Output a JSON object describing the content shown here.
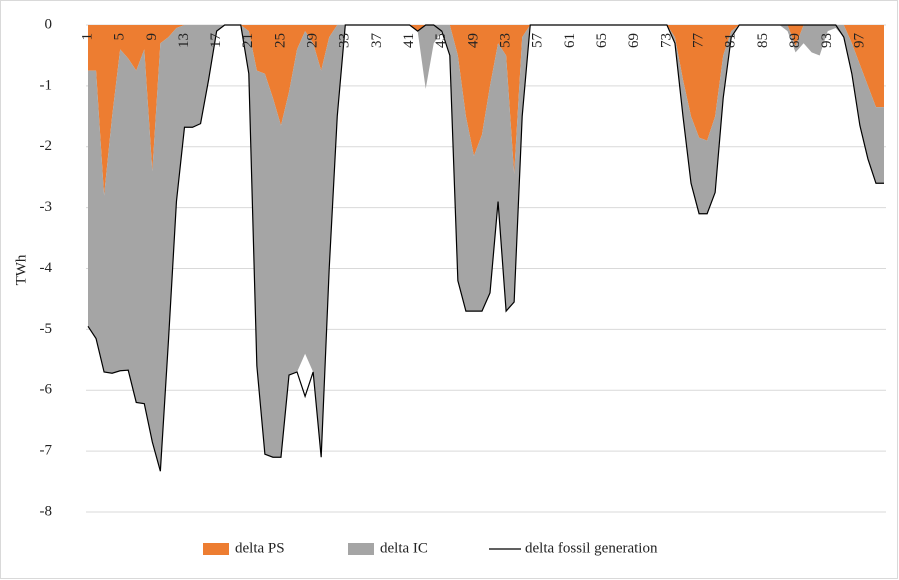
{
  "chart_data": {
    "type": "area",
    "y_label": "TWh",
    "categories": [
      "1",
      null,
      null,
      null,
      "5",
      null,
      null,
      null,
      "9",
      null,
      null,
      null,
      "13",
      null,
      null,
      null,
      "17",
      null,
      null,
      null,
      "21",
      null,
      null,
      null,
      "25",
      null,
      null,
      null,
      "29",
      null,
      null,
      null,
      "33",
      null,
      null,
      null,
      "37",
      null,
      null,
      null,
      "41",
      null,
      null,
      null,
      "45",
      null,
      null,
      null,
      "49",
      null,
      null,
      null,
      "53",
      null,
      null,
      null,
      "57",
      null,
      null,
      null,
      "61",
      null,
      null,
      null,
      "65",
      null,
      null,
      null,
      "69",
      null,
      null,
      null,
      "73",
      null,
      null,
      null,
      "77",
      null,
      null,
      null,
      "81",
      null,
      null,
      null,
      "85",
      null,
      null,
      null,
      "89",
      null,
      null,
      null,
      "93",
      null,
      null,
      null,
      "97",
      null,
      null,
      null
    ],
    "ylim": [
      -8,
      0
    ],
    "yticks": [
      0,
      -1,
      -2,
      -3,
      -4,
      -5,
      -6,
      -7,
      -8
    ],
    "grid": true,
    "legend": "bottom",
    "series": [
      {
        "name": "delta PS",
        "type": "area",
        "color": "#ED7D31",
        "values": [
          -0.75,
          -0.75,
          -2.8,
          -1.5,
          -0.4,
          -0.55,
          -0.75,
          -0.4,
          -2.4,
          -0.3,
          -0.2,
          -0.05,
          0,
          0,
          0,
          0,
          0,
          0,
          0,
          0,
          -0.1,
          -0.75,
          -0.8,
          -1.2,
          -1.65,
          -1.1,
          -0.4,
          -0.1,
          -0.3,
          -0.75,
          -0.2,
          0,
          0,
          0,
          0,
          0,
          0,
          0,
          0,
          0,
          0,
          -0.1,
          0,
          0,
          0,
          0,
          -0.5,
          -1.5,
          -2.15,
          -1.8,
          -1.0,
          -0.3,
          -0.5,
          -2.45,
          -0.2,
          0,
          0,
          0,
          0,
          0,
          0,
          0,
          0,
          0,
          0,
          0,
          0,
          0,
          0,
          0,
          0,
          0,
          0,
          -0.2,
          -0.9,
          -1.5,
          -1.85,
          -1.9,
          -1.5,
          -0.5,
          -0.1,
          0,
          0,
          0,
          0,
          0,
          0,
          0,
          -0.35,
          0,
          0,
          0,
          0,
          0,
          0,
          -0.3,
          -0.65,
          -1.0,
          -1.35,
          -1.35
        ]
      },
      {
        "name": "delta IC",
        "type": "area",
        "color": "#A5A5A5",
        "values": [
          -4.2,
          -4.4,
          -2.9,
          -4.22,
          -5.28,
          -5.12,
          -5.45,
          -5.82,
          -4.45,
          -7.03,
          -5.0,
          -2.85,
          -1.68,
          -1.68,
          -1.62,
          -0.9,
          -0.1,
          0,
          0,
          0,
          -0.7,
          -4.85,
          -6.25,
          -5.9,
          -5.45,
          -4.65,
          -5.3,
          -5.3,
          -5.4,
          -6.35,
          -3.8,
          -1.5,
          0,
          0,
          0,
          0,
          0,
          0,
          0,
          0,
          0,
          0,
          -1.05,
          -0.3,
          -0.1,
          -0.5,
          -3.7,
          -3.2,
          -2.55,
          -2.9,
          -3.4,
          -2.6,
          -4.2,
          -2.1,
          -1.3,
          0,
          0,
          0,
          0,
          0,
          0,
          0,
          0,
          0,
          0,
          0,
          0,
          0,
          0,
          0,
          0,
          0,
          0,
          -0.1,
          -0.6,
          -1.1,
          -1.25,
          -1.2,
          -1.25,
          -0.7,
          -0.1,
          0,
          0,
          0,
          0,
          0,
          0,
          -0.1,
          -0.1,
          -0.3,
          -0.45,
          -0.5,
          -0.1,
          -0.05,
          -0.2,
          -0.5,
          -1.0,
          -1.2,
          -1.25,
          -1.25
        ]
      },
      {
        "name": "delta fossil generation",
        "type": "line",
        "color": "#000000",
        "values": [
          -4.95,
          -5.15,
          -5.7,
          -5.72,
          -5.68,
          -5.67,
          -6.2,
          -6.22,
          -6.85,
          -7.33,
          -5.2,
          -2.9,
          -1.68,
          -1.68,
          -1.62,
          -0.9,
          -0.1,
          0,
          0,
          0,
          -0.8,
          -5.6,
          -7.05,
          -7.1,
          -7.1,
          -5.75,
          -5.7,
          -6.1,
          -5.7,
          -7.1,
          -4.0,
          -1.5,
          0,
          0,
          0,
          0,
          0,
          0,
          0,
          0,
          0,
          -0.1,
          0,
          0,
          -0.1,
          -0.5,
          -4.2,
          -4.7,
          -4.7,
          -4.7,
          -4.4,
          -2.9,
          -4.7,
          -4.55,
          -1.5,
          0,
          0,
          0,
          0,
          0,
          0,
          0,
          0,
          0,
          0,
          0,
          0,
          0,
          0,
          0,
          0,
          0,
          0,
          -0.3,
          -1.5,
          -2.6,
          -3.1,
          -3.1,
          -2.75,
          -1.2,
          -0.2,
          0,
          0,
          0,
          0,
          0,
          0,
          0,
          0,
          0,
          0,
          0,
          0,
          0,
          -0.2,
          -0.8,
          -1.65,
          -2.2,
          -2.6,
          -2.6
        ]
      }
    ]
  }
}
